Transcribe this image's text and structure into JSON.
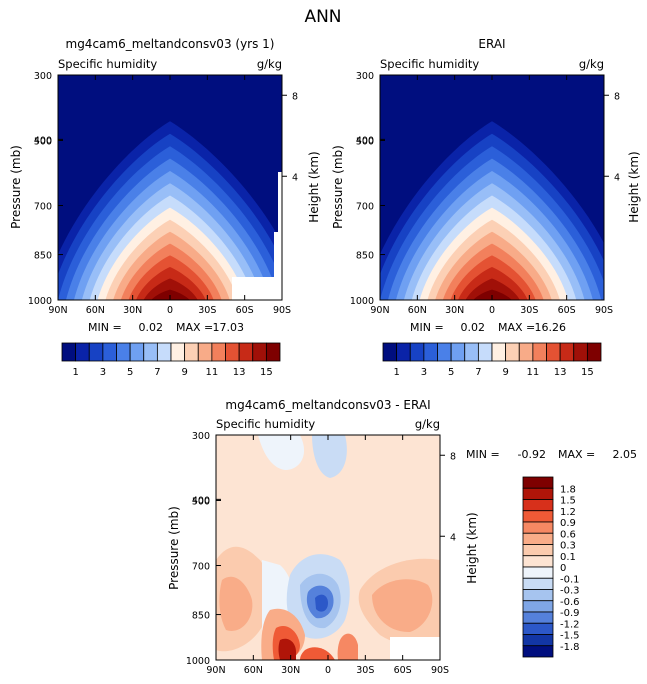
{
  "page_title": "ANN",
  "colors": {
    "cb1": [
      "#000e7f",
      "#0a23a8",
      "#1742c4",
      "#2b5fd9",
      "#4a80e8",
      "#6fa0f2",
      "#98bef7",
      "#c6dcfb",
      "#fff0e3",
      "#fcd0b5",
      "#f8ab88",
      "#f2805c",
      "#e45233",
      "#c72a17",
      "#a01008",
      "#7e0000"
    ],
    "cb2": [
      "#7e0000",
      "#b01509",
      "#d7301b",
      "#ef5a36",
      "#f68863",
      "#f9ac88",
      "#fbcbae",
      "#fde4d3",
      "#eef4fb",
      "#c9dcf5",
      "#a6c4ef",
      "#7fa6e6",
      "#5581db",
      "#2c58c8",
      "#1236a5",
      "#000e7f"
    ]
  },
  "chart_data": [
    {
      "id": "panel-model",
      "type": "contour",
      "title": "mg4cam6_meltandconsv03 (yrs 1)",
      "subtitle_left": "Specific humidity",
      "subtitle_right": "g/kg",
      "xlabel": "",
      "ylabel": "Pressure (mb)",
      "y2label": "Height (km)",
      "x_ticks": [
        "90N",
        "60N",
        "30N",
        "0",
        "30S",
        "60S",
        "90S"
      ],
      "y_ticks": [
        "300",
        "400",
        "500",
        "700",
        "850",
        "1000"
      ],
      "y2_ticks": [
        "8",
        "4"
      ],
      "stats": {
        "min_label": "MIN =",
        "min": "0.02",
        "max_label": "MAX =",
        "max": "17.03"
      },
      "peak_value": 17.03
    },
    {
      "id": "panel-obs",
      "type": "contour",
      "title": "ERAI",
      "subtitle_left": "Specific humidity",
      "subtitle_right": "g/kg",
      "xlabel": "",
      "ylabel": "Pressure (mb)",
      "y2label": "Height (km)",
      "x_ticks": [
        "90N",
        "60N",
        "30N",
        "0",
        "30S",
        "60S",
        "90S"
      ],
      "y_ticks": [
        "300",
        "400",
        "500",
        "700",
        "850",
        "1000"
      ],
      "y2_ticks": [
        "8",
        "4"
      ],
      "stats": {
        "min_label": "MIN =",
        "min": "0.02",
        "max_label": "MAX =",
        "max": "16.26"
      },
      "peak_value": 16.26
    },
    {
      "id": "panel-diff",
      "type": "contour",
      "title": "mg4cam6_meltandconsv03 - ERAI",
      "subtitle_left": "Specific humidity",
      "subtitle_right": "g/kg",
      "xlabel": "",
      "ylabel": "Pressure (mb)",
      "y2label": "Height (km)",
      "x_ticks": [
        "90N",
        "60N",
        "30N",
        "0",
        "30S",
        "60S",
        "90S"
      ],
      "y_ticks": [
        "300",
        "400",
        "500",
        "700",
        "850",
        "1000"
      ],
      "y2_ticks": [
        "8",
        "4"
      ],
      "stats": {
        "min_label": "MIN =",
        "min": "-0.92",
        "max_label": "MAX =",
        "max": "2.05"
      }
    }
  ],
  "colorbar_abs": {
    "levels": [
      1,
      2,
      3,
      4,
      5,
      6,
      7,
      8,
      9,
      10,
      11,
      12,
      13,
      14,
      15
    ],
    "labels": [
      "1",
      "3",
      "5",
      "7",
      "9",
      "11",
      "13",
      "15"
    ]
  },
  "colorbar_diff": {
    "labels": [
      "1.8",
      "1.5",
      "1.2",
      "0.9",
      "0.6",
      "0.3",
      "0.1",
      "0",
      "-0.1",
      "-0.3",
      "-0.6",
      "-0.9",
      "-1.2",
      "-1.5",
      "-1.8"
    ]
  }
}
